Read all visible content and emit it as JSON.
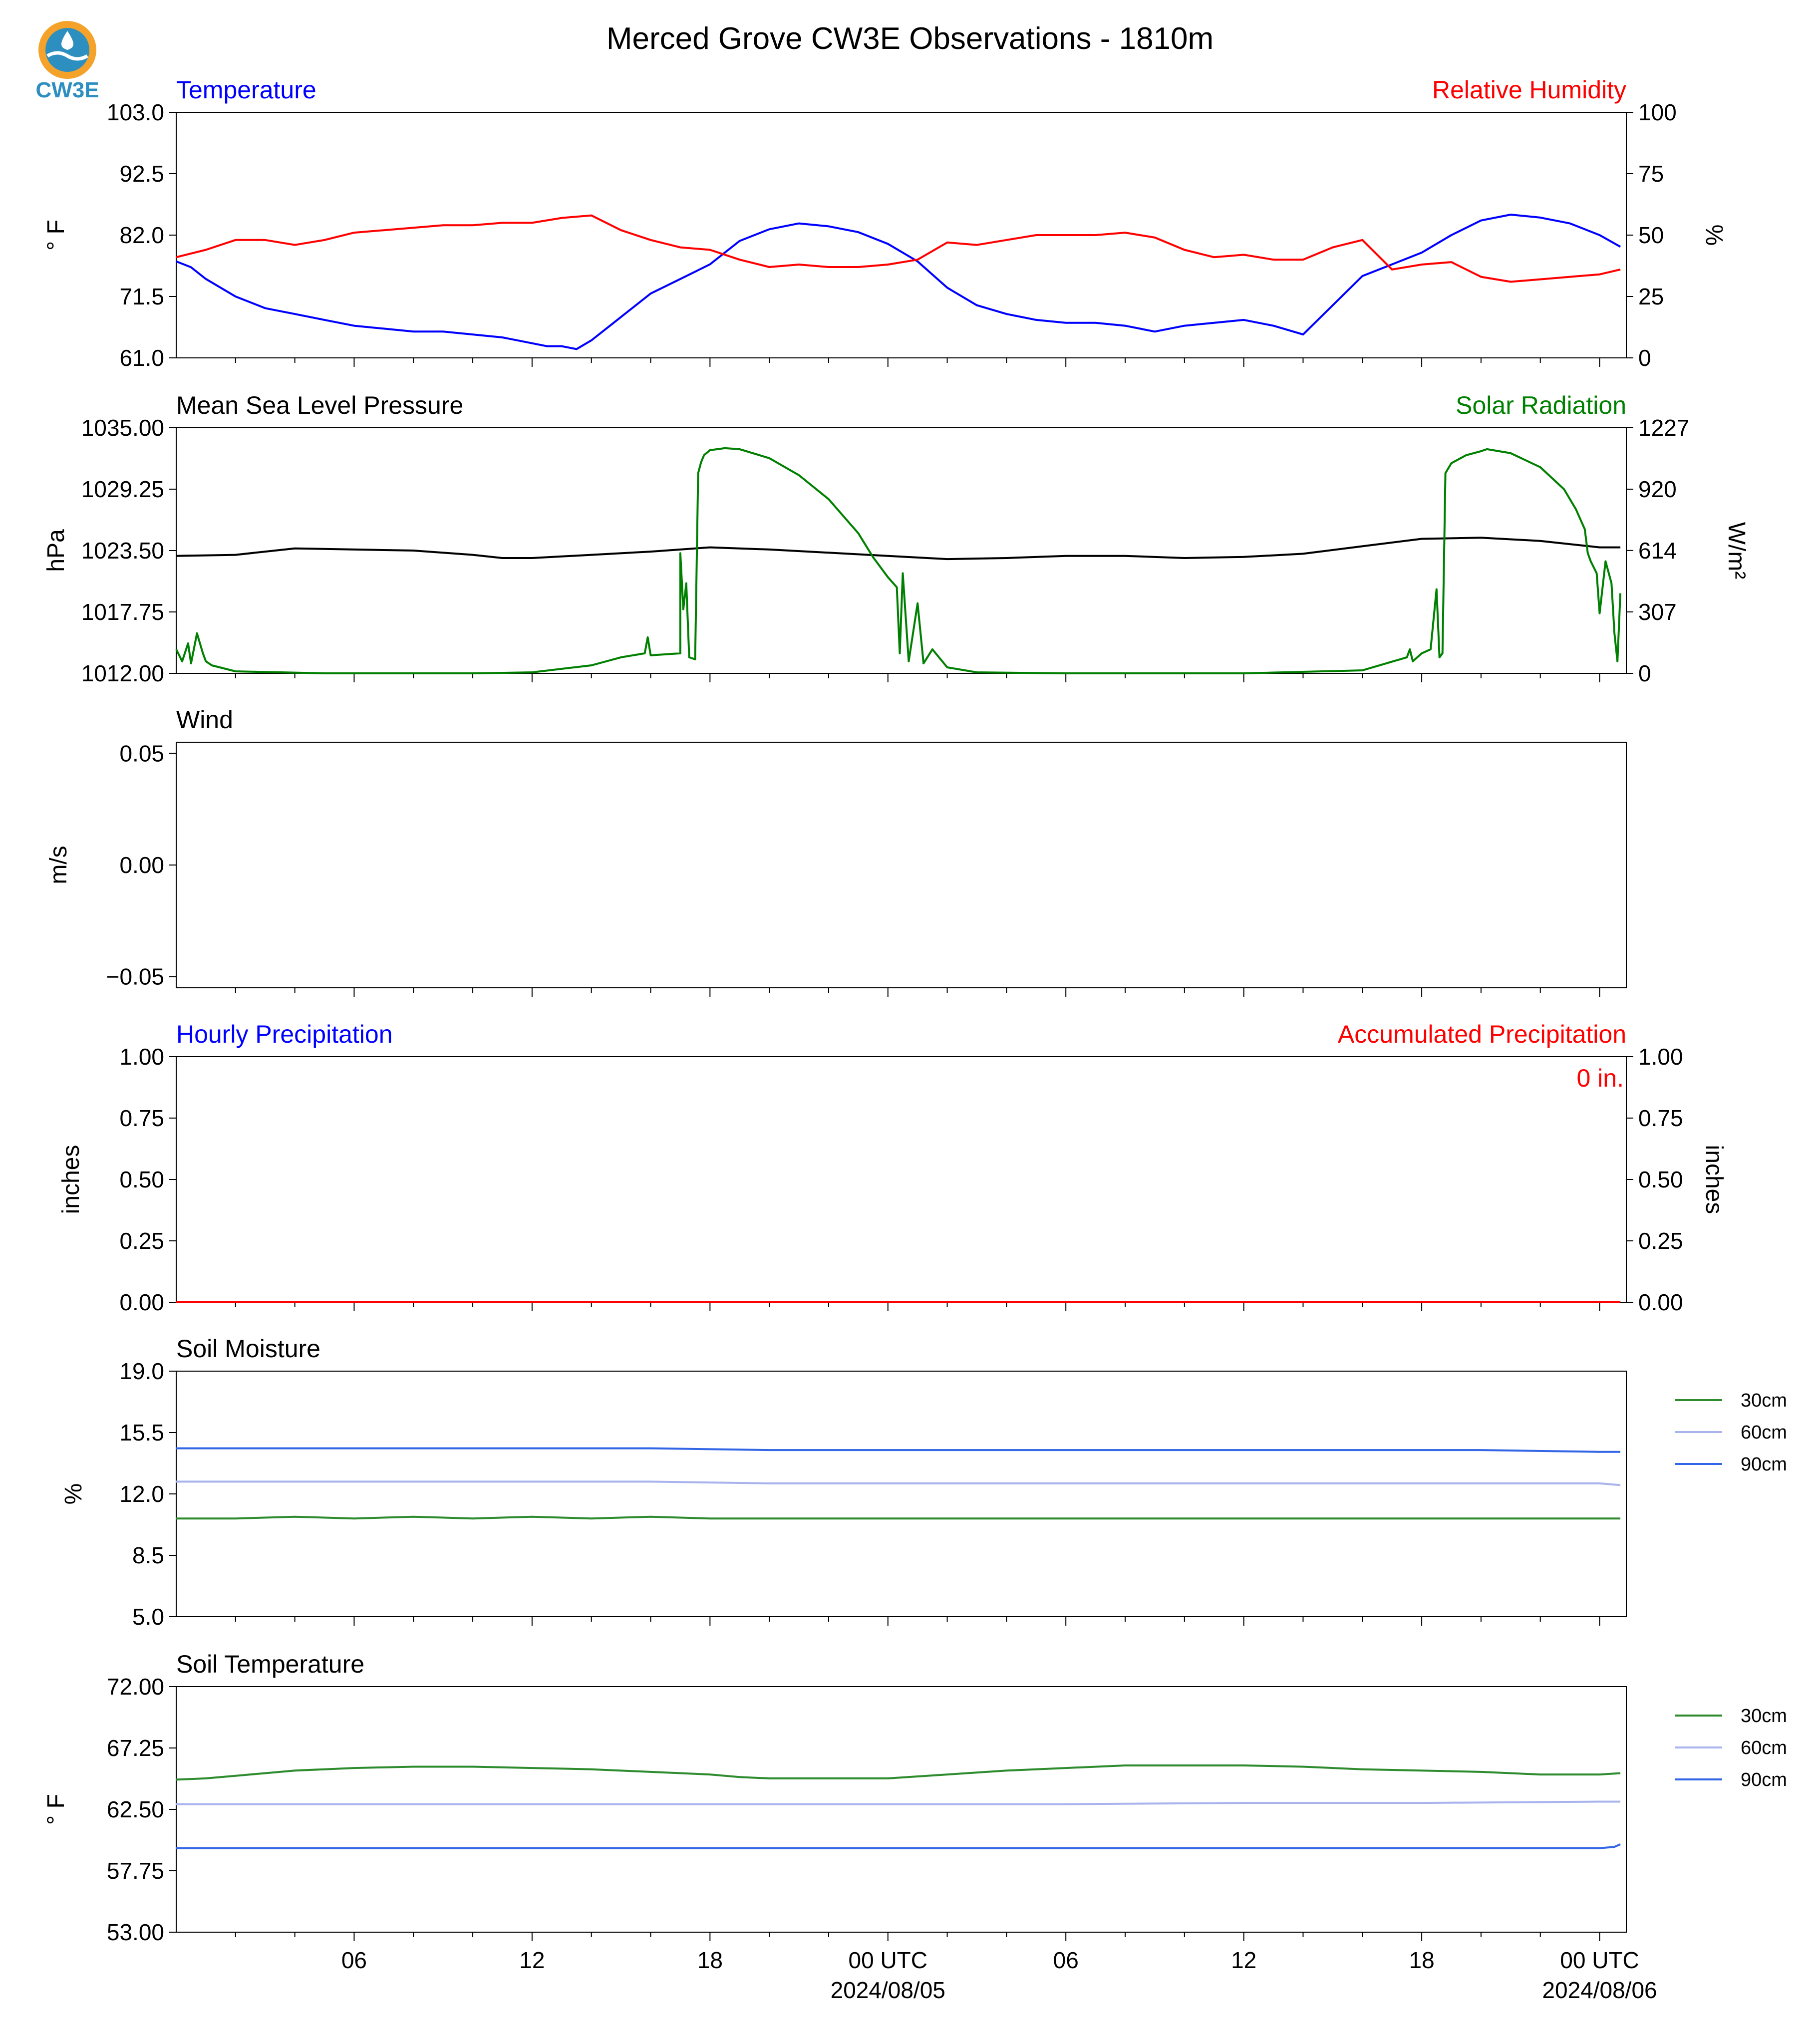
{
  "title": "Merced Grove CW3E Observations - 1810m",
  "logo": {
    "text": "CW3E",
    "colors": {
      "outer": "#f5a22a",
      "inner": "#2c8fc0"
    }
  },
  "x_axis": {
    "ticks": [
      {
        "hour": 6,
        "label": "06"
      },
      {
        "hour": 12,
        "label": "12"
      },
      {
        "hour": 18,
        "label": "18"
      },
      {
        "hour": 24,
        "label": "00 UTC",
        "date": "2024/08/05"
      },
      {
        "hour": 30,
        "label": "06"
      },
      {
        "hour": 36,
        "label": "12"
      },
      {
        "hour": 42,
        "label": "18"
      },
      {
        "hour": 48,
        "label": "00 UTC",
        "date": "2024/08/06"
      }
    ],
    "range_hours": [
      0,
      48.9
    ],
    "start_utc": "2024-08-04 00:00"
  },
  "colors": {
    "blue": "#0000ff",
    "red": "#ff0000",
    "green": "#008000",
    "black": "#000000",
    "soil30": "#2e8b2e",
    "soil60": "#a9b4ee",
    "soil90": "#3366e6"
  },
  "chart_data": [
    {
      "id": "temperature",
      "type": "line",
      "title_left": "Temperature",
      "title_right": "Relative Humidity",
      "ylabel": "° F",
      "ylabel_right": "%",
      "ylim": [
        61.0,
        103.0
      ],
      "yticks": [
        "61.0",
        "71.5",
        "82.0",
        "92.5",
        "103.0"
      ],
      "ylim_right": [
        0,
        100
      ],
      "yticks_right": [
        "0",
        "25",
        "50",
        "75",
        "100"
      ],
      "series": [
        {
          "axis": "left",
          "color": "#0000ff",
          "x": [
            0,
            0.5,
            1,
            2,
            3,
            4,
            5,
            6,
            7,
            8,
            9,
            10,
            11,
            12,
            12.5,
            13,
            13.5,
            14,
            15,
            16,
            17,
            18,
            18.5,
            19,
            20,
            21,
            22,
            23,
            24,
            25,
            26,
            27,
            28,
            29,
            30,
            31,
            32,
            33,
            34,
            35,
            36,
            37,
            38,
            39,
            40,
            41,
            42,
            43,
            44,
            45,
            46,
            47,
            48,
            48.7
          ],
          "y": [
            77.5,
            76.5,
            74.5,
            71.5,
            69.5,
            68.5,
            67.5,
            66.5,
            66.0,
            65.5,
            65.5,
            65.0,
            64.5,
            63.5,
            63.0,
            63.0,
            62.5,
            64.0,
            68.0,
            72.0,
            74.5,
            77.0,
            79.0,
            81.0,
            83.0,
            84.0,
            83.5,
            82.5,
            80.5,
            77.5,
            73.0,
            70.0,
            68.5,
            67.5,
            67.0,
            67.0,
            66.5,
            65.5,
            66.5,
            67.0,
            67.5,
            66.5,
            65.0,
            70.0,
            75.0,
            77.0,
            79.0,
            82.0,
            84.5,
            85.5,
            85.0,
            84.0,
            82.0,
            80.0
          ]
        },
        {
          "axis": "right",
          "color": "#ff0000",
          "x": [
            0,
            1,
            2,
            3,
            4,
            5,
            6,
            7,
            8,
            9,
            10,
            11,
            12,
            13,
            14,
            15,
            16,
            17,
            18,
            19,
            20,
            21,
            22,
            23,
            24,
            25,
            26,
            27,
            28,
            29,
            30,
            31,
            32,
            33,
            34,
            35,
            36,
            37,
            38,
            39,
            40,
            41,
            42,
            43,
            44,
            45,
            46,
            47,
            48,
            48.7
          ],
          "y": [
            41,
            44,
            48,
            48,
            46,
            48,
            51,
            52,
            53,
            54,
            54,
            55,
            55,
            57,
            58,
            52,
            48,
            45,
            44,
            40,
            37,
            38,
            37,
            37,
            38,
            40,
            47,
            46,
            48,
            50,
            50,
            50,
            51,
            49,
            44,
            41,
            42,
            40,
            40,
            45,
            48,
            36,
            38,
            39,
            33,
            31,
            32,
            33,
            34,
            36
          ]
        }
      ]
    },
    {
      "id": "pressure",
      "type": "line",
      "title_left": "Mean Sea Level Pressure",
      "title_right": "Solar Radiation",
      "ylabel": "hPa",
      "ylabel_right": "W/m²",
      "ylim": [
        1012.0,
        1035.0
      ],
      "yticks": [
        "1012.00",
        "1017.75",
        "1023.50",
        "1029.25",
        "1035.00"
      ],
      "ylim_right": [
        0,
        1227
      ],
      "yticks_right": [
        "0",
        "307",
        "614",
        "920",
        "1227"
      ],
      "series": [
        {
          "axis": "left",
          "color": "#000000",
          "x": [
            0,
            2,
            4,
            6,
            8,
            10,
            11,
            12,
            14,
            16,
            18,
            20,
            22,
            24,
            26,
            28,
            30,
            32,
            34,
            36,
            38,
            40,
            42,
            44,
            46,
            48,
            48.7
          ],
          "y": [
            1023.0,
            1023.1,
            1023.7,
            1023.6,
            1023.5,
            1023.1,
            1022.8,
            1022.8,
            1023.1,
            1023.4,
            1023.8,
            1023.6,
            1023.3,
            1023.0,
            1022.7,
            1022.8,
            1023.0,
            1023.0,
            1022.8,
            1022.9,
            1023.2,
            1023.9,
            1024.6,
            1024.7,
            1024.4,
            1023.8,
            1023.8
          ]
        },
        {
          "axis": "right",
          "color": "#008000",
          "x": [
            0,
            0.2,
            0.4,
            0.5,
            0.7,
            0.9,
            1.0,
            1.2,
            2,
            5,
            10,
            12,
            14,
            15,
            15.8,
            15.9,
            16.0,
            17,
            17.0,
            17.1,
            17.2,
            17.3,
            17.5,
            17.6,
            17.7,
            17.8,
            18.0,
            18.5,
            19.0,
            20,
            21,
            22,
            23,
            23.5,
            24.0,
            24.3,
            24.4,
            24.5,
            24.7,
            25.0,
            25.2,
            25.5,
            26,
            27,
            30,
            36,
            40,
            41.5,
            41.6,
            41.7,
            42.0,
            42.3,
            42.5,
            42.6,
            42.7,
            42.8,
            43.0,
            43.5,
            44.0,
            44.1,
            44.2,
            45,
            46,
            46.8,
            47.2,
            47.5,
            47.6,
            47.7,
            47.9,
            48.0,
            48.2,
            48.4,
            48.5,
            48.6,
            48.7
          ],
          "y": [
            120,
            60,
            150,
            50,
            200,
            100,
            60,
            40,
            10,
            0,
            0,
            5,
            40,
            80,
            100,
            180,
            90,
            100,
            600,
            320,
            450,
            80,
            70,
            1000,
            1055,
            1090,
            1115,
            1125,
            1120,
            1075,
            990,
            870,
            700,
            580,
            480,
            430,
            100,
            500,
            60,
            350,
            50,
            120,
            30,
            5,
            0,
            0,
            15,
            80,
            120,
            60,
            100,
            120,
            420,
            80,
            100,
            1000,
            1050,
            1090,
            1110,
            1115,
            1120,
            1100,
            1030,
            920,
            820,
            720,
            600,
            560,
            500,
            300,
            560,
            450,
            200,
            60,
            400
          ]
        }
      ]
    },
    {
      "id": "wind",
      "type": "line",
      "title_left": "Wind",
      "ylabel": "m/s",
      "ylim": [
        -0.055,
        0.055
      ],
      "yticks": [
        "−0.05",
        "0.00",
        "0.05"
      ],
      "ytick_values": [
        -0.05,
        0.0,
        0.05
      ],
      "series": []
    },
    {
      "id": "precip",
      "type": "line",
      "title_left": "Hourly Precipitation",
      "title_right": "Accumulated Precipitation",
      "annotation": "0 in.",
      "ylabel": "inches",
      "ylabel_right": "inches",
      "ylim": [
        0.0,
        1.0
      ],
      "yticks": [
        "0.00",
        "0.25",
        "0.50",
        "0.75",
        "1.00"
      ],
      "ylim_right": [
        0.0,
        1.0
      ],
      "yticks_right": [
        "0.00",
        "0.25",
        "0.50",
        "0.75",
        "1.00"
      ],
      "series": [
        {
          "axis": "left",
          "color": "#0000ff",
          "x": [
            0,
            48.7
          ],
          "y": [
            0,
            0
          ]
        },
        {
          "axis": "right",
          "color": "#ff0000",
          "x": [
            0,
            48.7
          ],
          "y": [
            0,
            0
          ]
        }
      ]
    },
    {
      "id": "soil_moisture",
      "type": "line",
      "title_left": "Soil Moisture",
      "ylabel": "%",
      "ylim": [
        5.0,
        19.0
      ],
      "yticks": [
        "5.0",
        "8.5",
        "12.0",
        "15.5",
        "19.0"
      ],
      "legend": [
        "30cm",
        "60cm",
        "90cm"
      ],
      "series": [
        {
          "name": "30cm",
          "color": "#2e8b2e",
          "x": [
            0,
            2,
            4,
            6,
            8,
            10,
            12,
            14,
            16,
            18,
            20,
            24,
            28,
            32,
            36,
            40,
            44,
            48.7
          ],
          "y": [
            10.6,
            10.6,
            10.7,
            10.6,
            10.7,
            10.6,
            10.7,
            10.6,
            10.7,
            10.6,
            10.6,
            10.6,
            10.6,
            10.6,
            10.6,
            10.6,
            10.6,
            10.6
          ]
        },
        {
          "name": "60cm",
          "color": "#a9b4ee",
          "x": [
            0,
            4,
            8,
            12,
            16,
            20,
            22,
            24,
            28,
            32,
            36,
            40,
            44,
            48,
            48.7
          ],
          "y": [
            12.7,
            12.7,
            12.7,
            12.7,
            12.7,
            12.6,
            12.6,
            12.6,
            12.6,
            12.6,
            12.6,
            12.6,
            12.6,
            12.6,
            12.5
          ]
        },
        {
          "name": "90cm",
          "color": "#3366e6",
          "x": [
            0,
            4,
            8,
            12,
            16,
            20,
            24,
            28,
            32,
            36,
            40,
            44,
            48,
            48.7
          ],
          "y": [
            14.6,
            14.6,
            14.6,
            14.6,
            14.6,
            14.5,
            14.5,
            14.5,
            14.5,
            14.5,
            14.5,
            14.5,
            14.4,
            14.4
          ]
        }
      ]
    },
    {
      "id": "soil_temperature",
      "type": "line",
      "title_left": "Soil Temperature",
      "ylabel": "° F",
      "ylim": [
        53.0,
        72.0
      ],
      "yticks": [
        "53.00",
        "57.75",
        "62.50",
        "67.25",
        "72.00"
      ],
      "legend": [
        "30cm",
        "60cm",
        "90cm"
      ],
      "series": [
        {
          "name": "30cm",
          "color": "#2e8b2e",
          "x": [
            0,
            1,
            2,
            3,
            4,
            5,
            6,
            8,
            10,
            12,
            14,
            16,
            18,
            19,
            20,
            22,
            24,
            26,
            28,
            30,
            32,
            34,
            36,
            38,
            40,
            42,
            44,
            46,
            48,
            48.7
          ],
          "y": [
            64.8,
            64.9,
            65.1,
            65.3,
            65.5,
            65.6,
            65.7,
            65.8,
            65.8,
            65.7,
            65.6,
            65.4,
            65.2,
            65.0,
            64.9,
            64.9,
            64.9,
            65.2,
            65.5,
            65.7,
            65.9,
            65.9,
            65.9,
            65.8,
            65.6,
            65.5,
            65.4,
            65.2,
            65.2,
            65.3
          ]
        },
        {
          "name": "60cm",
          "color": "#a9b4ee",
          "x": [
            0,
            6,
            12,
            18,
            24,
            30,
            36,
            42,
            48,
            48.7
          ],
          "y": [
            62.9,
            62.9,
            62.9,
            62.9,
            62.9,
            62.9,
            63.0,
            63.0,
            63.1,
            63.1
          ]
        },
        {
          "name": "90cm",
          "color": "#3366e6",
          "x": [
            0,
            12,
            24,
            36,
            48,
            48.5,
            48.7
          ],
          "y": [
            59.5,
            59.5,
            59.5,
            59.5,
            59.5,
            59.6,
            59.8
          ]
        }
      ]
    }
  ]
}
